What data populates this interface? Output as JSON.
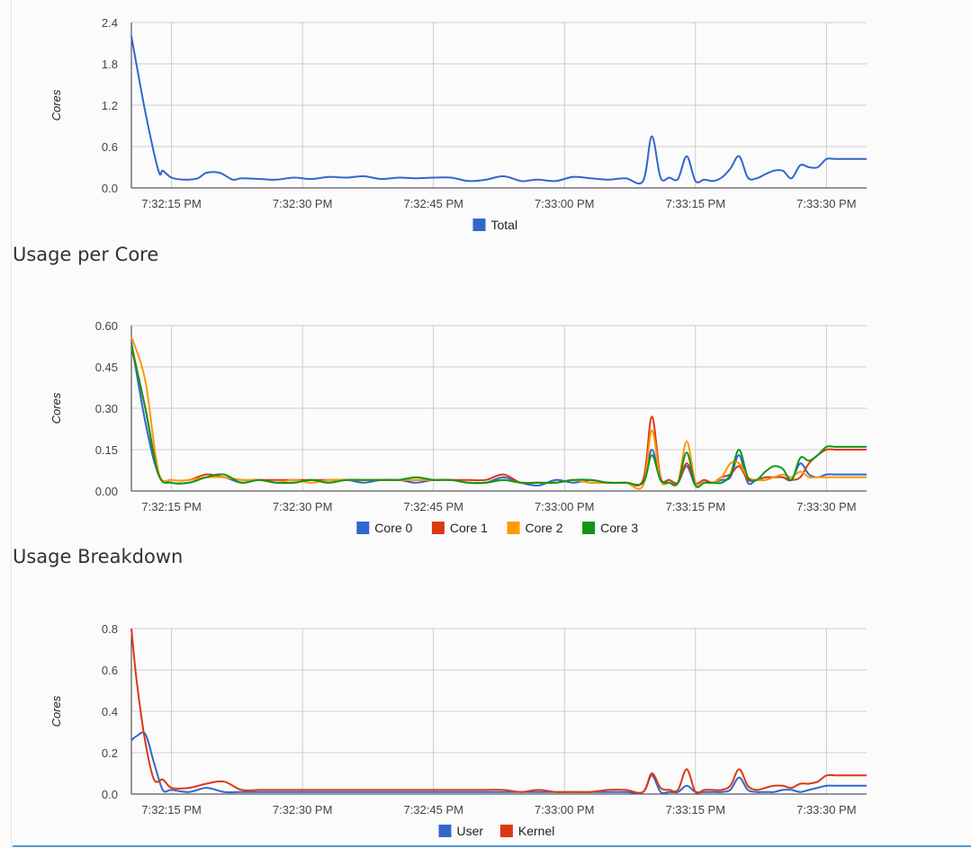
{
  "sections": {
    "usage_per_core": "Usage per Core",
    "usage_breakdown": "Usage Breakdown"
  },
  "chart_data": [
    {
      "type": "line",
      "ylabel": "Cores",
      "ylim": [
        0,
        2.4
      ],
      "yticks": [
        "0.0",
        "0.6",
        "1.2",
        "1.8",
        "2.4"
      ],
      "xticks": [
        "7:32:15 PM",
        "7:32:30 PM",
        "7:32:45 PM",
        "7:33:00 PM",
        "7:33:15 PM",
        "7:33:30 PM"
      ],
      "xtick_seconds": [
        15,
        30,
        45,
        60,
        75,
        90
      ],
      "xlim_seconds": [
        10.4,
        94.6
      ],
      "grid": true,
      "legend_position": "bottom",
      "x_seconds": [
        10.4,
        12,
        13.5,
        14,
        15,
        16.5,
        18,
        19,
        20.5,
        22,
        23,
        25,
        27,
        29,
        31,
        33,
        35,
        37,
        39,
        41,
        43,
        45,
        47,
        49,
        51,
        53,
        55,
        56,
        57,
        59,
        61,
        63,
        65,
        67,
        69,
        70,
        71,
        72,
        73,
        74,
        75,
        76,
        77,
        78,
        79,
        80,
        81,
        82,
        83,
        84,
        85,
        86,
        87,
        88,
        89,
        90,
        91,
        92,
        93,
        94,
        94.6
      ],
      "series": [
        {
          "name": "Total",
          "color": "#3366cc",
          "values": [
            2.2,
            1.1,
            0.25,
            0.25,
            0.15,
            0.12,
            0.14,
            0.22,
            0.22,
            0.12,
            0.14,
            0.13,
            0.12,
            0.15,
            0.13,
            0.16,
            0.15,
            0.17,
            0.13,
            0.15,
            0.14,
            0.15,
            0.15,
            0.1,
            0.12,
            0.17,
            0.1,
            0.11,
            0.12,
            0.1,
            0.16,
            0.14,
            0.12,
            0.14,
            0.1,
            0.75,
            0.15,
            0.15,
            0.13,
            0.46,
            0.1,
            0.12,
            0.1,
            0.15,
            0.28,
            0.46,
            0.15,
            0.14,
            0.2,
            0.25,
            0.25,
            0.14,
            0.33,
            0.3,
            0.3,
            0.42,
            0.42,
            0.42,
            0.42,
            0.42,
            0.42
          ]
        }
      ]
    },
    {
      "type": "line",
      "ylabel": "Cores",
      "ylim": [
        0,
        0.6
      ],
      "yticks": [
        "0.00",
        "0.15",
        "0.30",
        "0.45",
        "0.60"
      ],
      "xticks": [
        "7:32:15 PM",
        "7:32:30 PM",
        "7:32:45 PM",
        "7:33:00 PM",
        "7:33:15 PM",
        "7:33:30 PM"
      ],
      "xtick_seconds": [
        15,
        30,
        45,
        60,
        75,
        90
      ],
      "xlim_seconds": [
        10.4,
        94.6
      ],
      "grid": true,
      "legend_position": "bottom",
      "x_seconds": [
        10.4,
        12,
        13.5,
        15,
        17,
        19,
        21,
        23,
        25,
        27,
        29,
        31,
        33,
        35,
        37,
        39,
        41,
        43,
        45,
        47,
        49,
        51,
        53,
        55,
        57,
        59,
        61,
        63,
        65,
        67,
        69,
        70,
        71,
        72,
        73,
        74,
        75,
        76,
        77,
        78,
        79,
        80,
        81,
        82,
        83,
        84,
        85,
        86,
        87,
        88,
        89,
        90,
        91,
        92,
        93,
        94,
        94.6
      ],
      "series": [
        {
          "name": "Core 0",
          "color": "#3366cc",
          "values": [
            0.54,
            0.25,
            0.06,
            0.03,
            0.03,
            0.05,
            0.05,
            0.03,
            0.04,
            0.03,
            0.03,
            0.04,
            0.03,
            0.04,
            0.03,
            0.04,
            0.04,
            0.03,
            0.04,
            0.04,
            0.03,
            0.03,
            0.05,
            0.03,
            0.02,
            0.04,
            0.03,
            0.04,
            0.03,
            0.03,
            0.03,
            0.15,
            0.04,
            0.04,
            0.03,
            0.09,
            0.02,
            0.03,
            0.03,
            0.04,
            0.05,
            0.13,
            0.03,
            0.04,
            0.04,
            0.05,
            0.05,
            0.04,
            0.1,
            0.06,
            0.05,
            0.06,
            0.06,
            0.06,
            0.06,
            0.06,
            0.06
          ]
        },
        {
          "name": "Core 1",
          "color": "#dc3912",
          "values": [
            0.52,
            0.3,
            0.06,
            0.04,
            0.04,
            0.06,
            0.05,
            0.04,
            0.04,
            0.04,
            0.04,
            0.04,
            0.04,
            0.04,
            0.04,
            0.04,
            0.04,
            0.04,
            0.04,
            0.04,
            0.04,
            0.04,
            0.06,
            0.03,
            0.03,
            0.03,
            0.04,
            0.03,
            0.03,
            0.03,
            0.04,
            0.27,
            0.05,
            0.04,
            0.03,
            0.1,
            0.03,
            0.04,
            0.03,
            0.05,
            0.06,
            0.09,
            0.04,
            0.04,
            0.05,
            0.05,
            0.05,
            0.04,
            0.05,
            0.1,
            0.13,
            0.15,
            0.15,
            0.15,
            0.15,
            0.15,
            0.15
          ]
        },
        {
          "name": "Core 2",
          "color": "#ff9900",
          "values": [
            0.56,
            0.4,
            0.07,
            0.04,
            0.04,
            0.05,
            0.05,
            0.04,
            0.04,
            0.03,
            0.04,
            0.03,
            0.04,
            0.04,
            0.04,
            0.04,
            0.04,
            0.04,
            0.04,
            0.04,
            0.03,
            0.03,
            0.04,
            0.03,
            0.03,
            0.03,
            0.04,
            0.03,
            0.03,
            0.03,
            0.02,
            0.22,
            0.04,
            0.03,
            0.03,
            0.18,
            0.03,
            0.03,
            0.03,
            0.05,
            0.1,
            0.1,
            0.05,
            0.04,
            0.04,
            0.05,
            0.06,
            0.05,
            0.07,
            0.05,
            0.05,
            0.05,
            0.05,
            0.05,
            0.05,
            0.05,
            0.05
          ]
        },
        {
          "name": "Core 3",
          "color": "#109618",
          "values": [
            0.53,
            0.3,
            0.06,
            0.03,
            0.03,
            0.05,
            0.06,
            0.03,
            0.04,
            0.03,
            0.03,
            0.04,
            0.03,
            0.04,
            0.04,
            0.04,
            0.04,
            0.05,
            0.04,
            0.04,
            0.03,
            0.03,
            0.04,
            0.03,
            0.03,
            0.03,
            0.04,
            0.04,
            0.03,
            0.03,
            0.03,
            0.13,
            0.04,
            0.03,
            0.03,
            0.14,
            0.02,
            0.03,
            0.03,
            0.03,
            0.06,
            0.15,
            0.05,
            0.04,
            0.07,
            0.09,
            0.08,
            0.04,
            0.12,
            0.11,
            0.13,
            0.16,
            0.16,
            0.16,
            0.16,
            0.16,
            0.16
          ]
        }
      ]
    },
    {
      "type": "line",
      "ylabel": "Cores",
      "ylim": [
        0,
        0.8
      ],
      "yticks": [
        "0.0",
        "0.2",
        "0.4",
        "0.6",
        "0.8"
      ],
      "xticks": [
        "7:32:15 PM",
        "7:32:30 PM",
        "7:32:45 PM",
        "7:33:00 PM",
        "7:33:15 PM",
        "7:33:30 PM"
      ],
      "xtick_seconds": [
        15,
        30,
        45,
        60,
        75,
        90
      ],
      "xlim_seconds": [
        10.4,
        94.6
      ],
      "grid": true,
      "legend_position": "bottom",
      "x_seconds": [
        10.4,
        11,
        12,
        13,
        14,
        15,
        17,
        19,
        21,
        23,
        25,
        27,
        29,
        31,
        33,
        35,
        37,
        39,
        41,
        43,
        45,
        47,
        49,
        51,
        53,
        55,
        57,
        59,
        61,
        63,
        65,
        67,
        69,
        70,
        71,
        72,
        73,
        74,
        75,
        76,
        77,
        78,
        79,
        80,
        81,
        82,
        83,
        84,
        85,
        86,
        87,
        88,
        89,
        90,
        91,
        92,
        93,
        94,
        94.6
      ],
      "series": [
        {
          "name": "User",
          "color": "#3366cc",
          "values": [
            0.26,
            0.28,
            0.29,
            0.15,
            0.02,
            0.02,
            0.01,
            0.03,
            0.01,
            0.01,
            0.01,
            0.01,
            0.01,
            0.01,
            0.01,
            0.01,
            0.01,
            0.01,
            0.01,
            0.01,
            0.01,
            0.01,
            0.01,
            0.01,
            0.01,
            0.01,
            0.01,
            0.01,
            0.01,
            0.01,
            0.01,
            0.01,
            0.01,
            0.09,
            0.01,
            0.01,
            0.01,
            0.04,
            0.01,
            0.01,
            0.01,
            0.01,
            0.02,
            0.08,
            0.02,
            0.01,
            0.01,
            0.01,
            0.02,
            0.02,
            0.01,
            0.02,
            0.03,
            0.04,
            0.04,
            0.04,
            0.04,
            0.04,
            0.04
          ]
        },
        {
          "name": "Kernel",
          "color": "#dc3912",
          "values": [
            0.8,
            0.55,
            0.25,
            0.07,
            0.07,
            0.03,
            0.03,
            0.05,
            0.06,
            0.02,
            0.02,
            0.02,
            0.02,
            0.02,
            0.02,
            0.02,
            0.02,
            0.02,
            0.02,
            0.02,
            0.02,
            0.02,
            0.02,
            0.02,
            0.02,
            0.01,
            0.02,
            0.01,
            0.01,
            0.01,
            0.02,
            0.02,
            0.01,
            0.1,
            0.03,
            0.02,
            0.02,
            0.12,
            0.01,
            0.02,
            0.02,
            0.02,
            0.04,
            0.12,
            0.04,
            0.02,
            0.03,
            0.04,
            0.04,
            0.03,
            0.05,
            0.05,
            0.06,
            0.09,
            0.09,
            0.09,
            0.09,
            0.09,
            0.09
          ]
        }
      ]
    }
  ]
}
